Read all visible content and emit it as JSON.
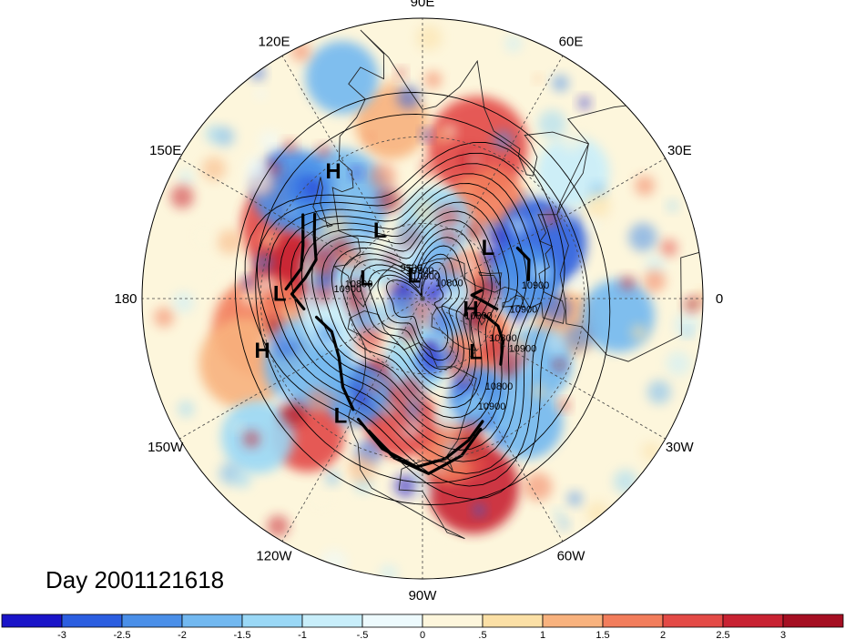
{
  "map": {
    "projection": "north-polar-stereographic",
    "pole": "north",
    "longitude_labels": [
      {
        "text": "90E",
        "lon": 90
      },
      {
        "text": "60E",
        "lon": 60
      },
      {
        "text": "30E",
        "lon": 30
      },
      {
        "text": "0",
        "lon": 0
      },
      {
        "text": "30W",
        "lon": -30
      },
      {
        "text": "60W",
        "lon": -60
      },
      {
        "text": "90W",
        "lon": -90
      },
      {
        "text": "120W",
        "lon": -120
      },
      {
        "text": "150W",
        "lon": -150
      },
      {
        "text": "180",
        "lon": 180
      },
      {
        "text": "150E",
        "lon": 150
      },
      {
        "text": "120E",
        "lon": 120
      }
    ],
    "contour_labels": [
      "10800",
      "10900",
      "10800",
      "10900",
      "9500",
      "10800",
      "10900",
      "10800",
      "10900",
      "10800",
      "10900",
      "10800",
      "10900"
    ],
    "pressure_systems": [
      {
        "text": "H",
        "lon": 125,
        "lat": 32
      },
      {
        "text": "L",
        "lon": 122,
        "lat": 58
      },
      {
        "text": "L",
        "lon": 110,
        "lat": 80
      },
      {
        "text": "L",
        "lon": 38,
        "lat": 57
      },
      {
        "text": "L",
        "lon": 178,
        "lat": 36
      },
      {
        "text": "L",
        "lon": 160,
        "lat": 66
      },
      {
        "text": "H",
        "lon": -12,
        "lat": 70
      },
      {
        "text": "H",
        "lon": -162,
        "lat": 28
      },
      {
        "text": "L",
        "lon": -45,
        "lat": 60
      },
      {
        "text": "L",
        "lon": -125,
        "lat": 36
      }
    ],
    "date_label": "Day 2001121618",
    "colors": {
      "coast": "#222222",
      "contour": "#000000"
    }
  },
  "colorbar": {
    "ticks": [
      "-3",
      "-2.5",
      "-2",
      "-1.5",
      "-1",
      "-.5",
      "0",
      ".5",
      "1",
      "1.5",
      "2",
      "2.5",
      "3"
    ],
    "colors": [
      "#1a14c8",
      "#2b5ee0",
      "#4a8fe8",
      "#72b8f0",
      "#9ad8f6",
      "#c8eefa",
      "#edfafd",
      "#fdf6dc",
      "#fbe0a6",
      "#f8b27e",
      "#f27d5c",
      "#e34a46",
      "#c82232",
      "#a50f22"
    ]
  }
}
